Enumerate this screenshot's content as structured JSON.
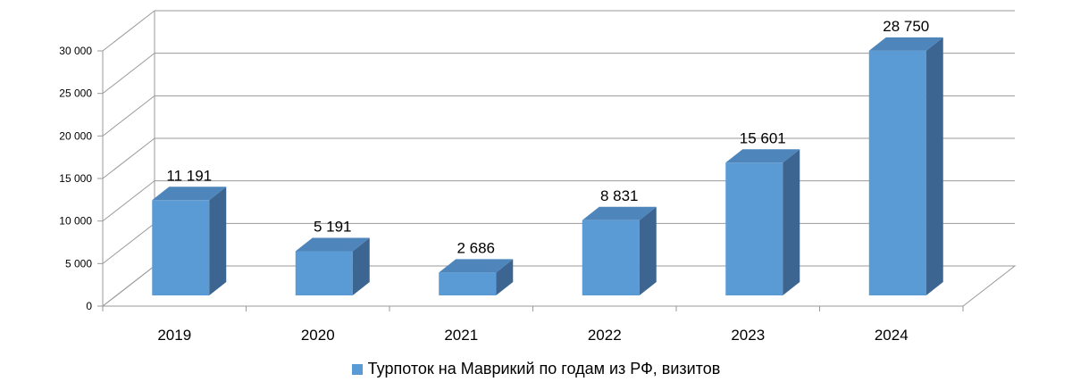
{
  "chart_data": {
    "type": "bar",
    "categories": [
      "2019",
      "2020",
      "2021",
      "2022",
      "2023",
      "2024"
    ],
    "series": [
      {
        "name": "Турпоток на Маврикий по годам из РФ, визитов",
        "values": [
          11191,
          5191,
          2686,
          8831,
          15601,
          28750
        ]
      }
    ],
    "data_labels": [
      "11 191",
      "5 191",
      "2 686",
      "8 831",
      "15 601",
      "28 750"
    ],
    "y_ticks": [
      0,
      5000,
      10000,
      15000,
      20000,
      25000,
      30000
    ],
    "y_tick_labels": [
      "0",
      "5 000",
      "10 000",
      "15 000",
      "20 000",
      "25 000",
      "30 000"
    ],
    "ylim": [
      0,
      30000
    ],
    "grid": true,
    "legend_position": "bottom",
    "style": "3d-column",
    "colors": {
      "bar_front": "#5B9BD5",
      "bar_top": "#4E86BC",
      "bar_side": "#3C6691",
      "grid": "#9A9A9A"
    }
  }
}
